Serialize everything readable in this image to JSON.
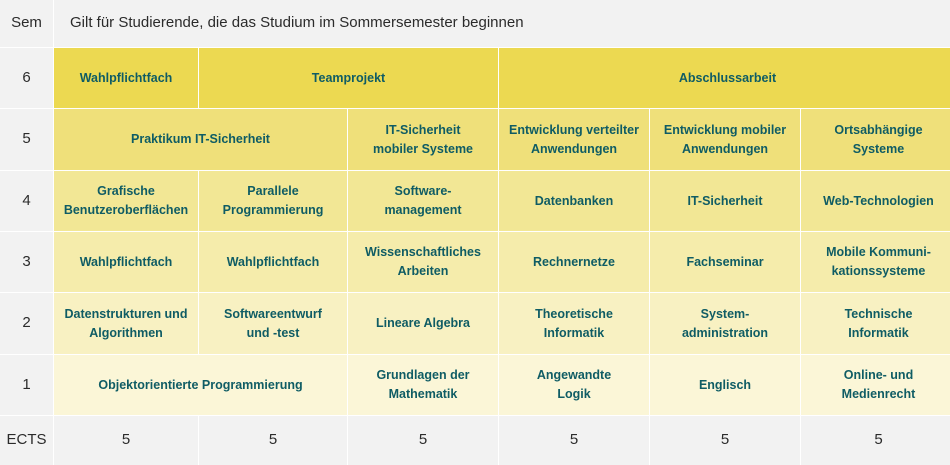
{
  "header": {
    "sem_label": "Sem",
    "title": "Gilt für Studierende, die das Studium im Sommersemester beginnen"
  },
  "semesters": {
    "s6": {
      "number": "6",
      "wahlpflicht": "Wahlpflichtfach",
      "teamprojekt": "Teamprojekt",
      "abschluss": "Abschlussarbeit"
    },
    "s5": {
      "number": "5",
      "praktikum": "Praktikum IT-Sicherheit",
      "it_mobil": "IT-Sicherheit\nmobiler Systeme",
      "verteilt": "Entwicklung verteilter\nAnwendungen",
      "mobil": "Entwicklung mobiler\nAnwendungen",
      "orts": "Ortsabhängige\nSysteme"
    },
    "s4": {
      "number": "4",
      "grafisch": "Grafische\nBenutzeroberflächen",
      "parallel": "Parallele\nProgrammierung",
      "software": "Software-\nmanagement",
      "datenbanken": "Datenbanken",
      "itsich": "IT-Sicherheit",
      "web": "Web-Technologien"
    },
    "s3": {
      "number": "3",
      "wpf1": "Wahlpflichtfach",
      "wpf2": "Wahlpflichtfach",
      "wiss": "Wissenschaftliches\nArbeiten",
      "netze": "Rechnernetze",
      "fachseminar": "Fachseminar",
      "mobilkom": "Mobile Kommuni-\nkationssysteme"
    },
    "s2": {
      "number": "2",
      "datenstrukturen": "Datenstrukturen und\nAlgorithmen",
      "swentwurf": "Softwareentwurf\nund -test",
      "linalg": "Lineare Algebra",
      "theoinf": "Theoretische\nInformatik",
      "sysadmin": "System-\nadministration",
      "techinf": "Technische\nInformatik"
    },
    "s1": {
      "number": "1",
      "oop": "Objektorientierte Programmierung",
      "mathe": "Grundlagen der\nMathematik",
      "logik": "Angewandte\nLogik",
      "englisch": "Englisch",
      "recht": "Online- und\nMedienrecht"
    }
  },
  "ects": {
    "label": "ECTS",
    "values": [
      "5",
      "5",
      "5",
      "5",
      "5",
      "5"
    ]
  },
  "colors": {
    "row6": "#ecd951",
    "row5": "#efe07a",
    "row4": "#f2e795",
    "row3": "#f5ecab",
    "row2": "#f8f1c2",
    "row1": "#fbf6d7",
    "text": "#0f5c64",
    "header_bg": "#f2f2f2"
  }
}
